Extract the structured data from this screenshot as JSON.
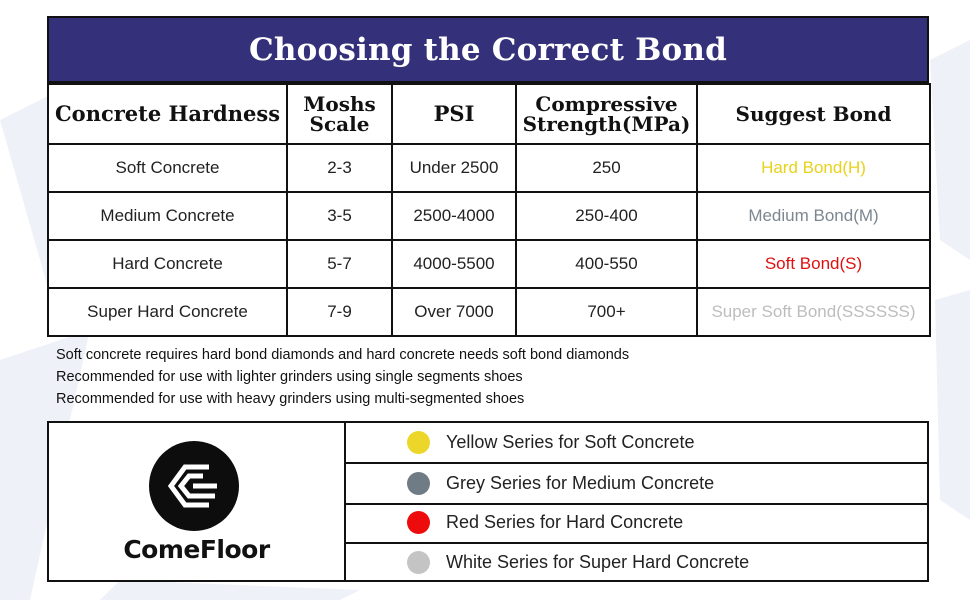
{
  "title": "Choosing the Correct Bond",
  "table": {
    "headers": [
      {
        "line1": "Concrete Hardness",
        "line2": ""
      },
      {
        "line1": "Moshs",
        "line2": "Scale"
      },
      {
        "line1": "PSI",
        "line2": ""
      },
      {
        "line1": "Compressive",
        "line2": "Strength(MPa)"
      },
      {
        "line1": "Suggest Bond",
        "line2": ""
      }
    ],
    "rows": [
      {
        "hardness": "Soft Concrete",
        "mohs": "2-3",
        "psi": "Under 2500",
        "strength": "250",
        "bond": "Hard Bond(H)",
        "bond_color": "#e8d21a"
      },
      {
        "hardness": "Medium Concrete",
        "mohs": "3-5",
        "psi": "2500-4000",
        "strength": "250-400",
        "bond": "Medium Bond(M)",
        "bond_color": "#7c8790"
      },
      {
        "hardness": "Hard Concrete",
        "mohs": "5-7",
        "psi": "4000-5500",
        "strength": "400-550",
        "bond": "Soft Bond(S)",
        "bond_color": "#e01010"
      },
      {
        "hardness": "Super Hard Concrete",
        "mohs": "7-9",
        "psi": "Over 7000",
        "strength": "700+",
        "bond": "Super Soft Bond(SSSSSS)",
        "bond_color": "#bdbdbd"
      }
    ]
  },
  "notes": [
    "Soft concrete requires hard bond diamonds and hard concrete needs soft bond diamonds",
    "Recommended for use with lighter grinders using single segments shoes",
    "Recommended for use with heavy grinders using multi-segmented shoes"
  ],
  "brand": {
    "name": "ComeFloor",
    "logo_icon": "comefloor-logo-icon"
  },
  "legend": [
    {
      "label": "Yellow Series for Soft Concrete",
      "color": "#ecd62a"
    },
    {
      "label": "Grey Series for Medium Concrete",
      "color": "#6f7b85"
    },
    {
      "label": "Red Series for Hard Concrete",
      "color": "#ee0b0b"
    },
    {
      "label": "White Series for Super Hard Concrete",
      "color": "#c4c4c4"
    }
  ],
  "colors": {
    "title_bar": "#34307a",
    "border": "#111111",
    "background_decor": "#eef1f8"
  }
}
